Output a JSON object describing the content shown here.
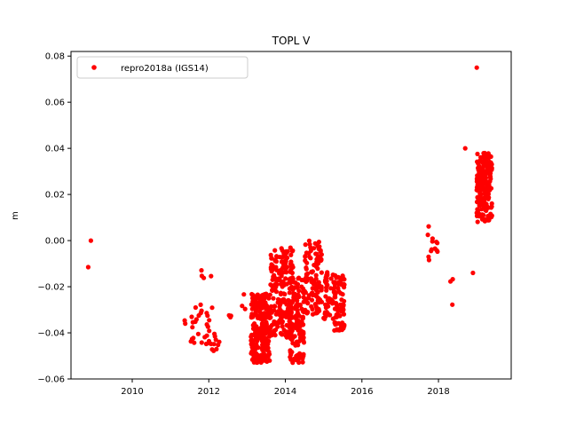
{
  "chart_data": {
    "type": "scatter",
    "title": "TOPL V",
    "xlabel": "",
    "ylabel": "m",
    "xlim": [
      2008.4,
      2019.9
    ],
    "ylim": [
      -0.06,
      0.082
    ],
    "x_ticks": [
      2010,
      2012,
      2014,
      2016,
      2018
    ],
    "y_ticks": [
      -0.06,
      -0.04,
      -0.02,
      0.0,
      0.02,
      0.04,
      0.06,
      0.08
    ],
    "y_tick_labels": [
      "−0.06",
      "−0.04",
      "−0.02",
      "0.00",
      "0.02",
      "0.04",
      "0.06",
      "0.08"
    ],
    "grid": false,
    "legend": {
      "position": "top-left",
      "entries": [
        "repro2018a (IGS14)"
      ]
    },
    "series": [
      {
        "name": "repro2018a (IGS14)",
        "color": "#ff0000",
        "marker": "circle",
        "clusters": [
          {
            "x": [
              2008.85,
              2008.92
            ],
            "y": [
              -0.0115,
              0.0
            ],
            "n": 2
          },
          {
            "x": [
              2011.3,
              2011.7
            ],
            "y": [
              -0.047,
              -0.033
            ],
            "n": 10
          },
          {
            "x": [
              2011.6,
              2012.1
            ],
            "y": [
              -0.045,
              -0.011
            ],
            "n": 22
          },
          {
            "x": [
              2012.0,
              2012.3
            ],
            "y": [
              -0.05,
              -0.04
            ],
            "n": 12
          },
          {
            "x": [
              2012.5,
              2012.6
            ],
            "y": [
              -0.034,
              -0.032
            ],
            "n": 3
          },
          {
            "x": [
              2012.85,
              2012.95
            ],
            "y": [
              -0.038,
              -0.021
            ],
            "n": 3
          },
          {
            "x": [
              2013.1,
              2013.6
            ],
            "y": [
              -0.053,
              -0.023
            ],
            "n": 220
          },
          {
            "x": [
              2013.6,
              2014.2
            ],
            "y": [
              -0.042,
              -0.003
            ],
            "n": 200
          },
          {
            "x": [
              2014.1,
              2014.5
            ],
            "y": [
              -0.053,
              -0.015
            ],
            "n": 140
          },
          {
            "x": [
              2014.5,
              2014.95
            ],
            "y": [
              -0.032,
              0.0
            ],
            "n": 120
          },
          {
            "x": [
              2015.0,
              2015.25
            ],
            "y": [
              -0.034,
              -0.012
            ],
            "n": 40
          },
          {
            "x": [
              2015.25,
              2015.55
            ],
            "y": [
              -0.039,
              -0.015
            ],
            "n": 80
          },
          {
            "x": [
              2017.7,
              2017.85
            ],
            "y": [
              -0.009,
              0.007
            ],
            "n": 8
          },
          {
            "x": [
              2017.9,
              2018.0
            ],
            "y": [
              -0.005,
              0.0
            ],
            "n": 5
          },
          {
            "x": [
              2018.3,
              2018.4
            ],
            "y": [
              -0.028,
              -0.016
            ],
            "n": 3
          },
          {
            "x": [
              2018.7,
              2018.75
            ],
            "y": [
              0.04,
              0.04
            ],
            "n": 1
          },
          {
            "x": [
              2018.9,
              2018.95
            ],
            "y": [
              -0.014,
              -0.014
            ],
            "n": 1
          },
          {
            "x": [
              2019.0,
              2019.05
            ],
            "y": [
              0.075,
              0.075
            ],
            "n": 1
          },
          {
            "x": [
              2019.0,
              2019.4
            ],
            "y": [
              0.008,
              0.038
            ],
            "n": 200
          }
        ]
      }
    ]
  }
}
